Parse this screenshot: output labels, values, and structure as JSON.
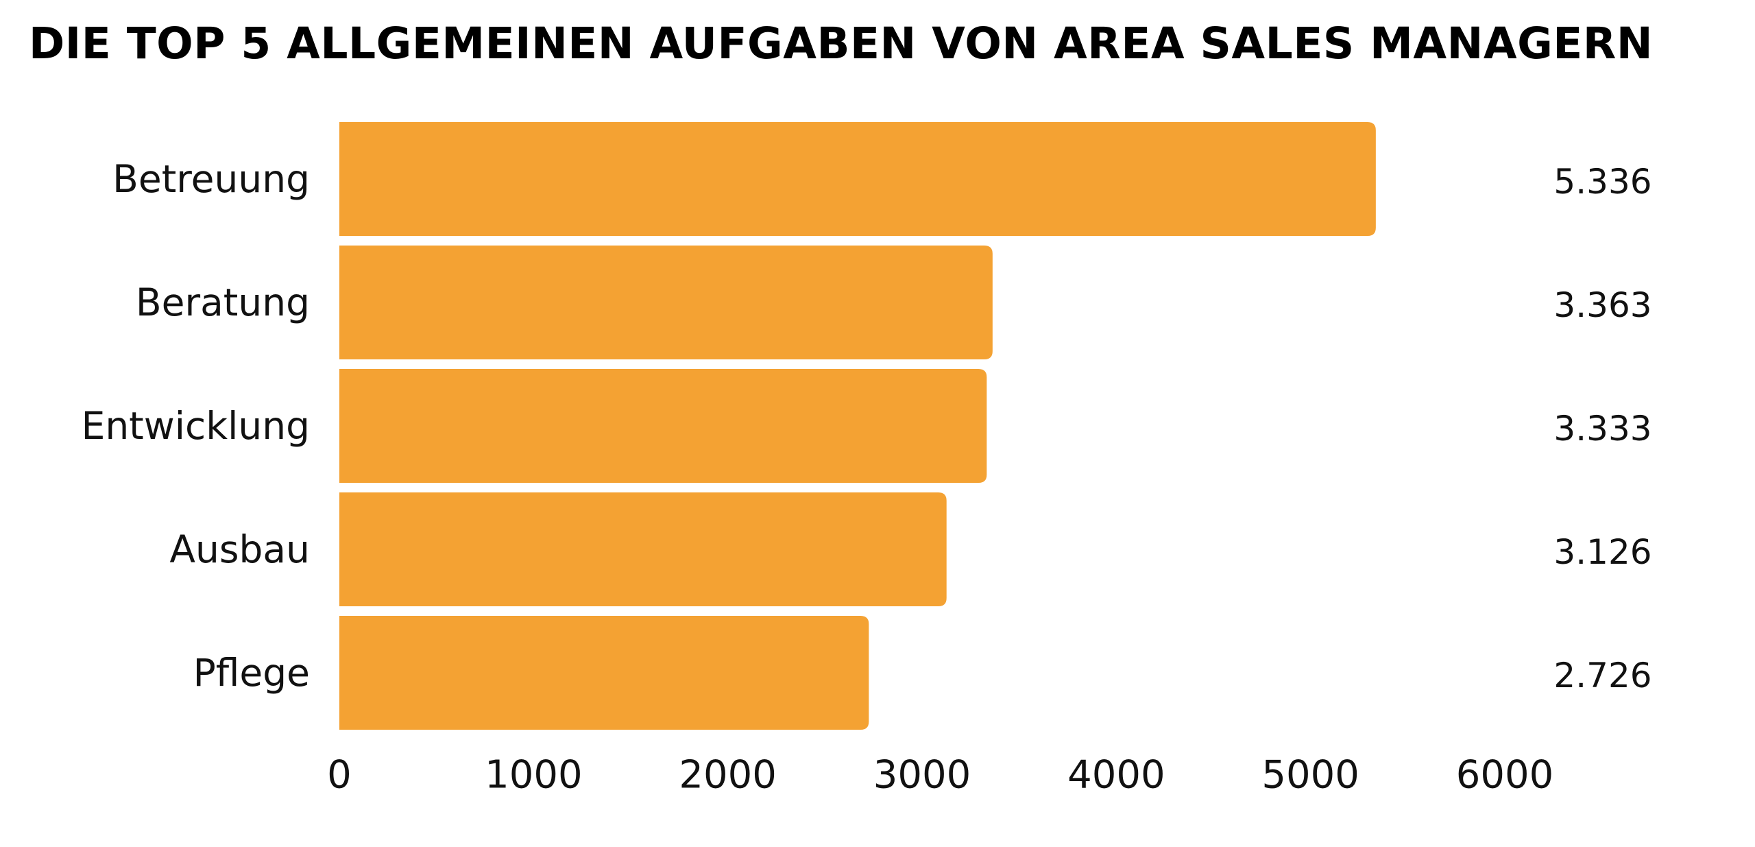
{
  "chart_data": {
    "type": "bar",
    "orientation": "horizontal",
    "title": "DIE TOP 5 ALLGEMEINEN AUFGABEN VON AREA SALES MANAGERN",
    "xlabel": "",
    "ylabel": "",
    "categories": [
      "Betreuung",
      "Beratung",
      "Entwicklung",
      "Ausbau",
      "Pflege"
    ],
    "values": [
      5336,
      3363,
      3333,
      3126,
      2726
    ],
    "value_labels": [
      "5.336",
      "3.363",
      "3.333",
      "3.126",
      "2.726"
    ],
    "xlim": [
      0,
      6000
    ],
    "xticks": [
      0,
      1000,
      2000,
      3000,
      4000,
      5000,
      6000
    ],
    "xtick_labels": [
      "0",
      "1000",
      "2000",
      "3000",
      "4000",
      "5000",
      "6000"
    ],
    "bar_color": "#F4A233",
    "grid": false,
    "legend": "none"
  }
}
